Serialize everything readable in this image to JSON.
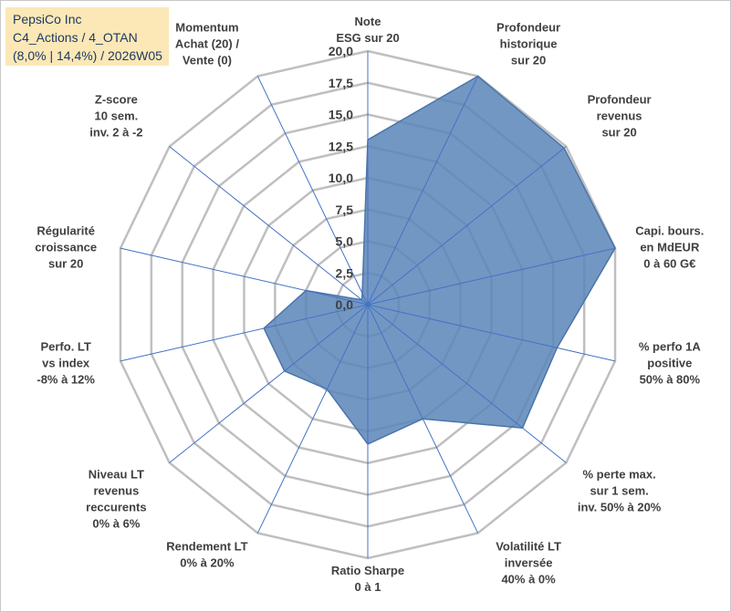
{
  "header": {
    "lines": [
      "PepsiCo Inc",
      "C4_Actions / 4_OTAN",
      "(8,0% | 14,4%) / 2026W05"
    ]
  },
  "colors": {
    "fill": "#5a85b8",
    "stroke": "#4b74a8",
    "grid": "#bfbfbf",
    "axis": "#4472c4",
    "title_bg": "#fbe8b6",
    "title_text": "#1f3864"
  },
  "chart_data": {
    "type": "radar",
    "scale_min": 0,
    "scale_max": 20,
    "tick_labels": [
      "0,0",
      "2,5",
      "5,0",
      "7,5",
      "10,0",
      "12,5",
      "15,0",
      "17,5",
      "20,0"
    ],
    "axes": [
      {
        "lines": [
          "Note",
          "ESG sur 20"
        ]
      },
      {
        "lines": [
          "Profondeur",
          "historique",
          "sur 20"
        ]
      },
      {
        "lines": [
          "Profondeur",
          "revenus",
          "sur 20"
        ]
      },
      {
        "lines": [
          "Capi. bours.",
          "en MdEUR",
          "0 à 60 G€"
        ]
      },
      {
        "lines": [
          "% perfo 1A",
          "positive",
          "50% à 80%"
        ]
      },
      {
        "lines": [
          "% perte max.",
          "sur 1 sem.",
          "inv. 50% à 20%"
        ]
      },
      {
        "lines": [
          "Volatilité LT",
          "inversée",
          "40% à 0%"
        ]
      },
      {
        "lines": [
          "Ratio Sharpe",
          "0 à 1"
        ]
      },
      {
        "lines": [
          "Rendement LT",
          "0% à 20%"
        ]
      },
      {
        "lines": [
          "Niveau LT",
          "revenus",
          "reccurents",
          "0% à 6%"
        ]
      },
      {
        "lines": [
          "Perfo. LT",
          "vs index",
          "-8% à 12%"
        ]
      },
      {
        "lines": [
          "Régularité",
          "croissance",
          "sur 20"
        ]
      },
      {
        "lines": [
          "Z-score",
          "10 sem.",
          "inv. 2 à -2"
        ]
      },
      {
        "lines": [
          "Momentum",
          "Achat (20) /",
          "Vente (0)"
        ]
      }
    ],
    "values": [
      13.0,
      20.0,
      19.8,
      20.0,
      15.3,
      15.6,
      10.0,
      11.0,
      7.4,
      8.4,
      8.4,
      5.0,
      0.6,
      1.0
    ],
    "grid": true
  }
}
